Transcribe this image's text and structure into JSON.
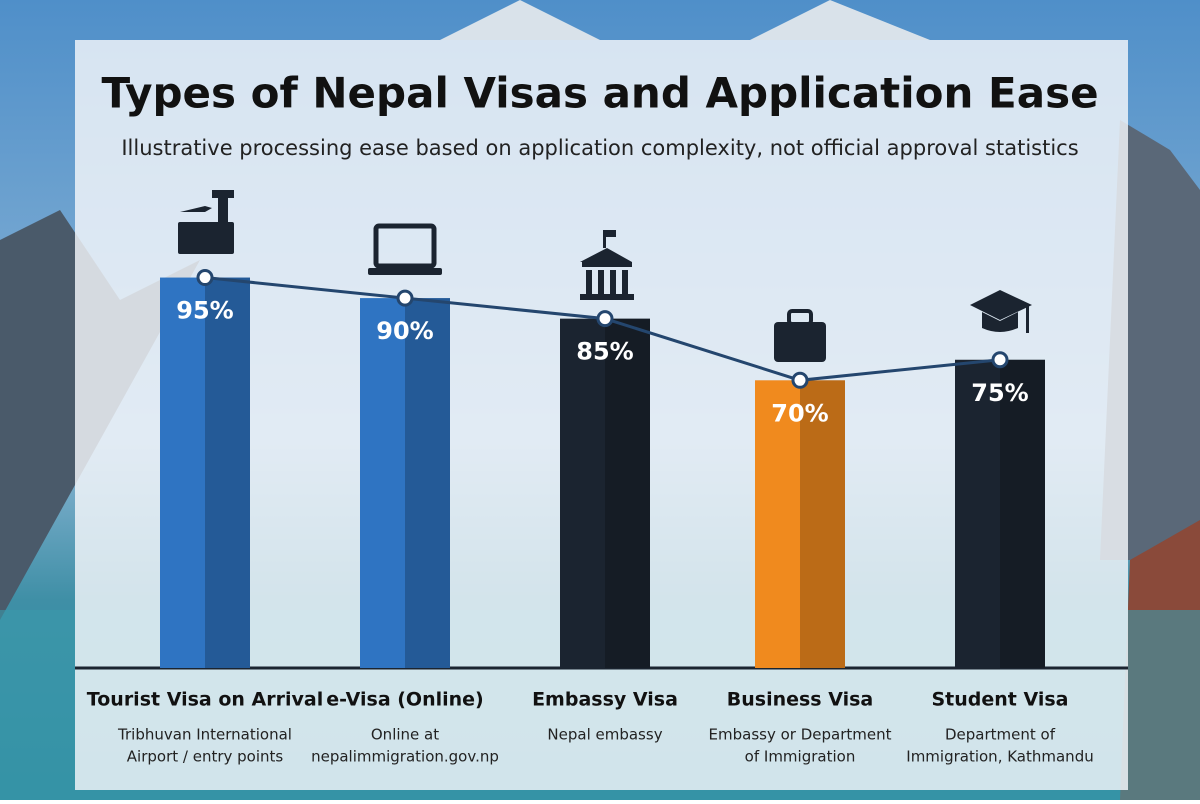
{
  "chart_data": {
    "type": "bar",
    "title": "Types of Nepal Visas and Application Ease",
    "subtitle": "Illustrative processing ease based on application complexity, not official approval statistics",
    "categories": [
      "Tourist Visa on Arrival",
      "e-Visa (Online)",
      "Embassy Visa",
      "Business Visa",
      "Student Visa"
    ],
    "sublabels": [
      [
        "Tribhuvan International",
        "Airport / entry points"
      ],
      [
        "Online at",
        "nepalimmigration.gov.np"
      ],
      [
        "Nepal embassy"
      ],
      [
        "Embassy or Department",
        "of Immigration"
      ],
      [
        "Department of",
        "Immigration, Kathmandu"
      ]
    ],
    "values": [
      95,
      90,
      85,
      70,
      75
    ],
    "value_labels": [
      "95%",
      "90%",
      "85%",
      "70%",
      "75%"
    ],
    "colors": [
      "#2f74c2",
      "#2f74c2",
      "#1b2430",
      "#f08a1e",
      "#1b2430"
    ],
    "line_color": "#24466e",
    "ylim": [
      0,
      100
    ]
  }
}
